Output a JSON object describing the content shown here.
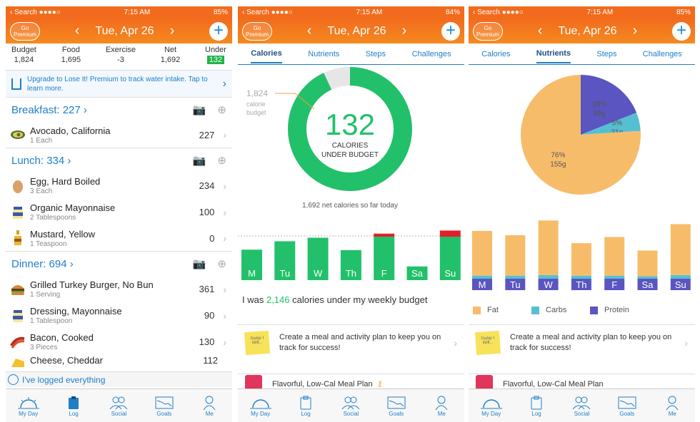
{
  "status": {
    "left": "Search",
    "time": "7:15 AM",
    "battery1": "85%",
    "battery2": "84%",
    "battery3": "85%"
  },
  "header": {
    "go_premium": "Go Premium",
    "date": "Tue, Apr 26",
    "prev": "‹",
    "next": "›",
    "add": "+"
  },
  "summary": [
    {
      "label": "Budget",
      "value": "1,824"
    },
    {
      "label": "Food",
      "value": "1,695"
    },
    {
      "label": "Exercise",
      "value": "-3"
    },
    {
      "label": "Net",
      "value": "1,692"
    },
    {
      "label": "Under",
      "value": "132"
    }
  ],
  "banner": "Upgrade to Lose It! Premium to track water intake. Tap to learn more.",
  "meals": {
    "breakfast": {
      "title": "Breakfast: 227",
      "items": [
        {
          "name": "Avocado, California",
          "sub": "1 Each",
          "cal": "227"
        }
      ]
    },
    "lunch": {
      "title": "Lunch: 334",
      "items": [
        {
          "name": "Egg, Hard Boiled",
          "sub": "3 Each",
          "cal": "234"
        },
        {
          "name": "Organic Mayonnaise",
          "sub": "2 Tablespoons",
          "cal": "100"
        },
        {
          "name": "Mustard, Yellow",
          "sub": "1 Teaspoon",
          "cal": "0"
        }
      ]
    },
    "dinner": {
      "title": "Dinner: 694",
      "items": [
        {
          "name": "Grilled Turkey Burger, No Bun",
          "sub": "1 Serving",
          "cal": "361"
        },
        {
          "name": "Dressing, Mayonnaise",
          "sub": "1 Tablespoon",
          "cal": "90"
        },
        {
          "name": "Bacon, Cooked",
          "sub": "3 Pieces",
          "cal": "130"
        },
        {
          "name": "Cheese, Cheddar",
          "sub": "",
          "cal": "112"
        }
      ]
    }
  },
  "logged": "I've logged everything",
  "tabbar": [
    "My Day",
    "Log",
    "Social",
    "Goals",
    "Me"
  ],
  "tabs": [
    "Calories",
    "Nutrients",
    "Steps",
    "Challenges"
  ],
  "calories": {
    "big": "132",
    "line1": "CALORIES",
    "line2": "UNDER BUDGET",
    "budget": "1,824",
    "budget_l1": "calorie",
    "budget_l2": "budget",
    "net_text": "1,692 net calories so far today",
    "under_budget_fraction": 0.93
  },
  "weekly": {
    "prefix": "I was ",
    "value": "2,146",
    "suffix": " calories under my weekly budget"
  },
  "tip": "Create a meal and activity plan to keep you on track for success!",
  "note": "Today I Will...",
  "plan": "Flavorful, Low-Cal Meal Plan",
  "nutrients": {
    "legend": [
      "Fat",
      "Carbs",
      "Protein"
    ]
  },
  "colors": {
    "orange": "#f26b1d",
    "green": "#22c06a",
    "blue": "#1e7fc8",
    "fat": "#f7bc6a",
    "carbs": "#56bfd2",
    "protein": "#5a55c0",
    "red": "#e3202a"
  },
  "chart_data": [
    {
      "type": "bar",
      "title": "",
      "categories": [
        "M",
        "Tu",
        "W",
        "Th",
        "F",
        "Sa",
        "Su"
      ],
      "values": [
        0.69,
        0.88,
        0.96,
        0.68,
        1.0,
        0.31,
        1.0
      ],
      "over": [
        0,
        0,
        0,
        0,
        0.02,
        0,
        0.09
      ],
      "ylabel": "",
      "note": "relative calories vs daily budget line"
    },
    {
      "type": "pie",
      "title": "",
      "labels": [
        "Fat",
        "Carbs",
        "Protein"
      ],
      "values": [
        76,
        5,
        19
      ],
      "grams": [
        "155g",
        "21g",
        "89g"
      ]
    },
    {
      "type": "bar",
      "title": "",
      "categories": [
        "M",
        "Tu",
        "W",
        "Th",
        "F",
        "Sa",
        "Su"
      ],
      "series": [
        {
          "name": "Fat",
          "values": [
            0.73,
            0.66,
            0.89,
            0.53,
            0.63,
            0.42,
            0.83
          ]
        },
        {
          "name": "Carbs",
          "values": [
            0.05,
            0.05,
            0.06,
            0.05,
            0.05,
            0.04,
            0.06
          ]
        },
        {
          "name": "Protein",
          "values": [
            0.19,
            0.18,
            0.24,
            0.16,
            0.18,
            0.15,
            0.22
          ]
        }
      ]
    }
  ]
}
